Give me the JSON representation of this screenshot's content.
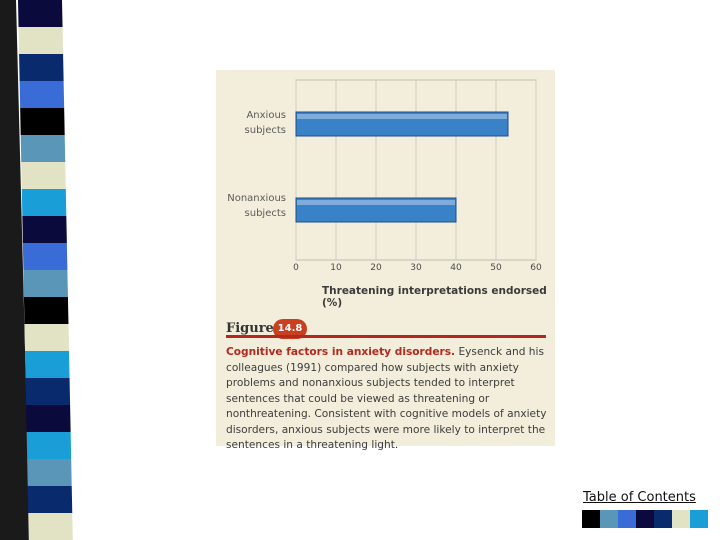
{
  "slide": {
    "stripe_colors": [
      "#0a0a3c",
      "#e2e2c4",
      "#0a2a6e",
      "#3a6cd8",
      "#000000",
      "#5a96b8",
      "#e2e2c4",
      "#1a9ed8",
      "#0a0a3c",
      "#3a6cd8",
      "#5a96b8",
      "#000000",
      "#e2e2c4",
      "#1a9ed8",
      "#0a2a6e",
      "#0a0a3c",
      "#1a9ed8",
      "#5a96b8",
      "#0a2a6e",
      "#e2e2c4"
    ],
    "toc_link": "Table of Contents",
    "swatch_colors": [
      "#000000",
      "#5a96b8",
      "#3a6cd8",
      "#0a0a3c",
      "#0a2a6e",
      "#e2e2c4",
      "#1a9ed8"
    ]
  },
  "figure": {
    "label_word": "Figure",
    "number": "14.8",
    "caption_title": "Cognitive factors in anxiety disorders.",
    "caption_body": "Eysenck and his colleagues (1991) compared how subjects with anxiety problems and nonanxious subjects tended to interpret sentences that could be viewed as threatening or nonthreatening. Consistent with cognitive models of anxiety disorders, anxious subjects were more likely to interpret the sentences in a threatening light.",
    "colors": {
      "bar": "#3a82c8",
      "badge": "#c8401f",
      "accent": "#b3281f",
      "panel": "#f3eedb"
    }
  },
  "chart_data": {
    "type": "bar",
    "orientation": "horizontal",
    "categories": [
      "Anxious subjects",
      "Nonanxious subjects"
    ],
    "category_lines": [
      [
        "Anxious",
        "subjects"
      ],
      [
        "Nonanxious",
        "subjects"
      ]
    ],
    "values": [
      53,
      40
    ],
    "xlabel": "Threatening interpretations endorsed (%)",
    "xticks": [
      "0",
      "10",
      "20",
      "30",
      "40",
      "50",
      "60"
    ],
    "xlim": [
      0,
      60
    ],
    "grid": true
  }
}
